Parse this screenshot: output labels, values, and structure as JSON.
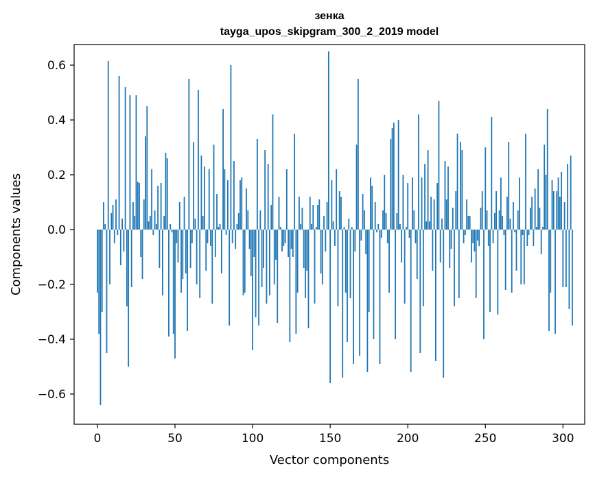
{
  "chart_data": {
    "type": "bar",
    "title_line1": "зенка",
    "title_line2": "tayga_upos_skipgram_300_2_2019 model",
    "xlabel": "Vector components",
    "ylabel": "Components values",
    "xlim": [
      -15,
      314
    ],
    "ylim": [
      -0.71,
      0.675
    ],
    "x_ticks": [
      0,
      50,
      100,
      150,
      200,
      250,
      300
    ],
    "x_tick_labels": [
      "0",
      "50",
      "100",
      "150",
      "200",
      "250",
      "300"
    ],
    "y_ticks": [
      -0.6,
      -0.4,
      -0.2,
      0.0,
      0.2,
      0.4,
      0.6
    ],
    "y_tick_labels": [
      "−0.6",
      "−0.4",
      "−0.2",
      "0.0",
      "0.2",
      "0.4",
      "0.6"
    ],
    "grid": false,
    "bar_color": "#1f77b4",
    "values": [
      -0.23,
      -0.38,
      -0.64,
      -0.3,
      0.1,
      0.02,
      -0.45,
      0.615,
      -0.2,
      0.06,
      0.09,
      -0.05,
      0.11,
      -0.02,
      0.56,
      -0.13,
      0.04,
      -0.08,
      0.52,
      -0.28,
      -0.5,
      0.49,
      -0.21,
      0.1,
      0.05,
      0.49,
      0.175,
      0.17,
      -0.1,
      -0.18,
      0.11,
      0.34,
      0.45,
      0.03,
      0.05,
      0.22,
      -0.02,
      0.07,
      0.02,
      0.16,
      -0.14,
      0.17,
      -0.24,
      0.05,
      0.28,
      0.26,
      -0.39,
      0.02,
      -0.01,
      -0.38,
      -0.47,
      -0.05,
      -0.12,
      0.1,
      -0.23,
      -0.18,
      0.12,
      -0.16,
      -0.37,
      0.55,
      -0.14,
      -0.05,
      0.32,
      0.04,
      -0.2,
      0.51,
      -0.25,
      0.27,
      0.05,
      0.23,
      -0.15,
      -0.05,
      0.22,
      -0.06,
      -0.27,
      0.31,
      -0.1,
      0.13,
      0.01,
      0.02,
      -0.16,
      0.44,
      0.22,
      -0.02,
      0.18,
      -0.35,
      0.6,
      -0.05,
      0.25,
      -0.07,
      0.02,
      0.06,
      0.18,
      0.19,
      -0.24,
      -0.23,
      0.15,
      0.07,
      -0.07,
      -0.17,
      -0.44,
      -0.1,
      -0.32,
      0.33,
      -0.35,
      0.07,
      -0.21,
      -0.14,
      0.29,
      -0.27,
      0.24,
      -0.24,
      0.09,
      0.42,
      -0.2,
      -0.11,
      -0.34,
      0.12,
      0.01,
      -0.08,
      -0.06,
      -0.05,
      0.22,
      -0.1,
      -0.41,
      -0.07,
      -0.1,
      0.35,
      -0.38,
      -0.23,
      0.12,
      0.02,
      0.08,
      -0.14,
      -0.25,
      -0.15,
      -0.36,
      0.12,
      0.02,
      0.09,
      -0.27,
      0.01,
      0.09,
      0.11,
      -0.16,
      -0.2,
      0.05,
      -0.08,
      0.1,
      0.65,
      -0.56,
      0.18,
      0.03,
      -0.06,
      0.22,
      -0.28,
      0.14,
      0.12,
      -0.54,
      0.01,
      -0.23,
      -0.41,
      0.04,
      -0.25,
      0.01,
      -0.49,
      -0.08,
      0.31,
      0.55,
      -0.46,
      -0.04,
      0.13,
      0.07,
      -0.09,
      -0.52,
      -0.3,
      0.19,
      0.16,
      -0.4,
      0.1,
      -0.01,
      0.02,
      -0.49,
      -0.03,
      0.07,
      0.2,
      0.06,
      -0.05,
      -0.23,
      0.33,
      0.37,
      0.39,
      -0.4,
      0.06,
      0.4,
      0.02,
      -0.12,
      0.2,
      -0.27,
      0.01,
      0.17,
      -0.03,
      -0.52,
      0.19,
      0.07,
      -0.05,
      -0.18,
      0.42,
      -0.45,
      0.19,
      -0.28,
      0.24,
      0.03,
      0.29,
      0.03,
      0.12,
      -0.15,
      0.11,
      -0.48,
      0.17,
      0.47,
      -0.12,
      0.04,
      -0.54,
      0.25,
      0.11,
      0.23,
      -0.14,
      -0.07,
      0.08,
      -0.28,
      0.14,
      0.35,
      -0.25,
      0.32,
      0.29,
      -0.05,
      -0.02,
      0.11,
      0.05,
      0.05,
      -0.12,
      -0.05,
      -0.08,
      -0.25,
      -0.04,
      -0.06,
      0.08,
      0.14,
      -0.4,
      0.3,
      0.07,
      -0.06,
      -0.3,
      0.41,
      -0.05,
      0.06,
      0.14,
      -0.31,
      0.07,
      0.19,
      0.05,
      -0.02,
      -0.22,
      0.12,
      0.32,
      0.04,
      -0.23,
      0.1,
      -0.01,
      -0.15,
      0.07,
      0.19,
      -0.2,
      -0.02,
      -0.2,
      0.35,
      -0.06,
      -0.02,
      0.08,
      0.12,
      -0.06,
      0.15,
      0.01,
      0.22,
      0.08,
      -0.09,
      0.01,
      0.31,
      0.2,
      0.44,
      -0.37,
      -0.23,
      0.18,
      0.14,
      -0.38,
      0.14,
      0.19,
      0.12,
      0.21,
      -0.21,
      0.1,
      -0.21,
      0.24,
      -0.29,
      0.27,
      -0.35
    ]
  }
}
